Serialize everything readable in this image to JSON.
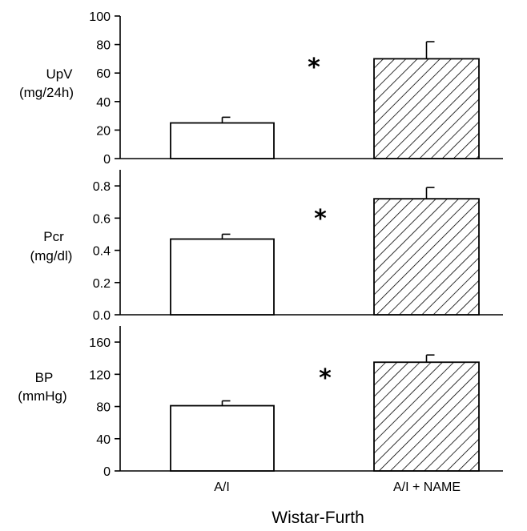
{
  "xlabel": "Wistar-Furth",
  "categories": [
    "A/I",
    "A/I + NAME"
  ],
  "chart_data": [
    {
      "type": "bar",
      "ylabel": [
        "UpV",
        "(mg/24h)"
      ],
      "categories": [
        "A/I",
        "A/I + NAME"
      ],
      "values": [
        25,
        70
      ],
      "errors": [
        4,
        12
      ],
      "ylim": [
        0,
        100
      ],
      "yticks": [
        "0",
        "20",
        "40",
        "60",
        "80",
        "100"
      ],
      "annotation": "*",
      "bar_fills": [
        "white",
        "diagonal-hatch"
      ]
    },
    {
      "type": "bar",
      "ylabel": [
        "Pcr",
        "(mg/dl)"
      ],
      "categories": [
        "A/I",
        "A/I + NAME"
      ],
      "values": [
        0.47,
        0.72
      ],
      "errors": [
        0.03,
        0.07
      ],
      "ylim": [
        0,
        0.9
      ],
      "yticks": [
        "0.0",
        "0.2",
        "0.4",
        "0.6",
        "0.8"
      ],
      "annotation": "*",
      "bar_fills": [
        "white",
        "diagonal-hatch"
      ]
    },
    {
      "type": "bar",
      "ylabel": [
        "BP",
        "(mmHg)"
      ],
      "categories": [
        "A/I",
        "A/I + NAME"
      ],
      "values": [
        81,
        135
      ],
      "errors": [
        6,
        9
      ],
      "ylim": [
        0,
        180
      ],
      "yticks": [
        "0",
        "40",
        "80",
        "120",
        "160"
      ],
      "annotation": "*",
      "bar_fills": [
        "white",
        "diagonal-hatch"
      ]
    }
  ]
}
